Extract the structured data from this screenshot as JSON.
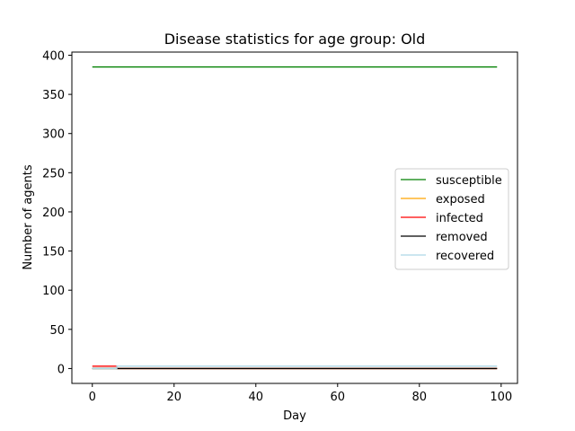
{
  "chart_data": {
    "type": "line",
    "title": "Disease statistics for age group: Old",
    "xlabel": "Day",
    "ylabel": "Number of agents",
    "xlim": [
      -5,
      104
    ],
    "ylim": [
      -19,
      404
    ],
    "xticks": [
      0,
      20,
      40,
      60,
      80,
      100
    ],
    "yticks": [
      0,
      50,
      100,
      150,
      200,
      250,
      300,
      350,
      400
    ],
    "legend_position": "center-right",
    "series": [
      {
        "name": "susceptible",
        "color": "#008000",
        "x": [
          0,
          99
        ],
        "y": [
          385,
          385
        ]
      },
      {
        "name": "exposed",
        "color": "#ffa500",
        "x": [
          0,
          99
        ],
        "y": [
          0,
          0
        ]
      },
      {
        "name": "infected",
        "color": "#ff0000",
        "x": [
          0,
          6,
          6,
          99
        ],
        "y": [
          3,
          3,
          0,
          0
        ]
      },
      {
        "name": "removed",
        "color": "#000000",
        "x": [
          0,
          99
        ],
        "y": [
          0,
          0
        ]
      },
      {
        "name": "recovered",
        "color": "#add8e6",
        "x": [
          0,
          6,
          6,
          99
        ],
        "y": [
          0,
          0,
          3,
          3
        ]
      }
    ]
  }
}
